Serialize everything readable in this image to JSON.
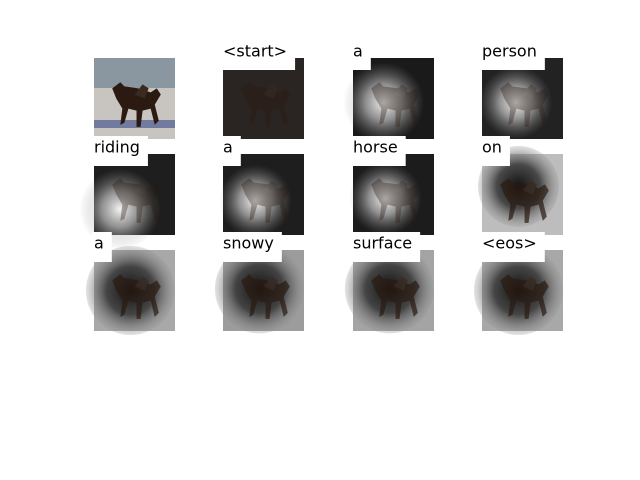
{
  "tokens": [
    "<start>",
    "a",
    "person",
    "riding",
    "a",
    "horse",
    "on",
    "a",
    "snowy",
    "surface",
    "<eos>"
  ]
}
